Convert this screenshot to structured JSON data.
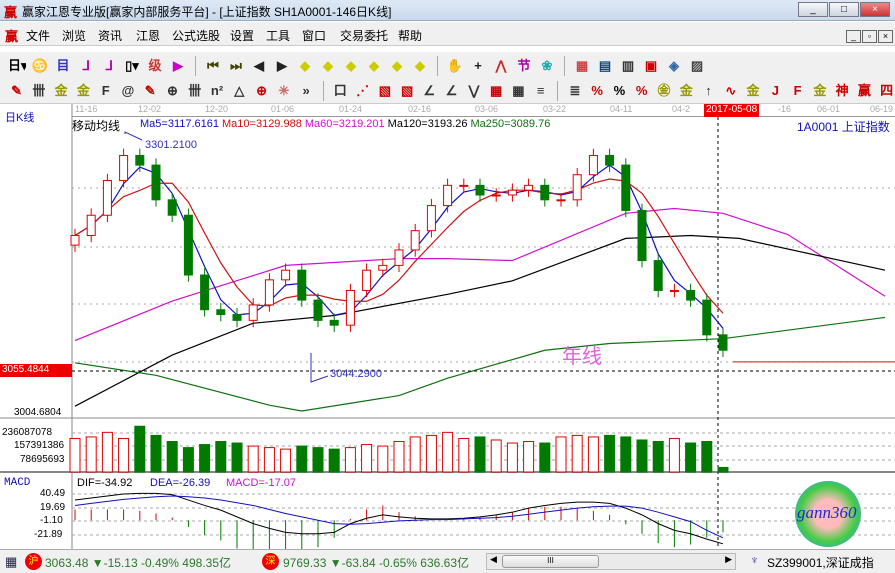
{
  "window": {
    "title": "赢家江恩专业版[赢家内部服务平台] - [上证指数  SH1A0001-146日K线]",
    "logo": "赢"
  },
  "menu": [
    "文件",
    "浏览",
    "资讯",
    "江恩",
    "公式选股",
    "设置",
    "工具",
    "窗口",
    "交易委托",
    "帮助"
  ],
  "toolbar1": [
    {
      "icon": "period-day-dropdown",
      "glyph": "日▾"
    },
    {
      "icon": "kline-chart-icon",
      "glyph": "♋"
    },
    {
      "icon": "list-icon",
      "glyph": "目"
    },
    {
      "icon": "ma3-icon",
      "glyph": "ᒧ"
    },
    {
      "icon": "ma9-icon",
      "glyph": "ᒧ"
    },
    {
      "icon": "candle-dropdown-icon",
      "glyph": "▯▾"
    },
    {
      "icon": "level-icon",
      "glyph": "级"
    },
    {
      "icon": "flag-icon",
      "glyph": "▶"
    },
    {
      "icon": "first-icon",
      "glyph": "⏮"
    },
    {
      "icon": "last-icon",
      "glyph": "⏭"
    },
    {
      "icon": "prev-icon",
      "glyph": "◀"
    },
    {
      "icon": "next-icon",
      "glyph": "▶"
    },
    {
      "icon": "move-left-icon",
      "glyph": "◆"
    },
    {
      "icon": "move-right-icon",
      "glyph": "◆"
    },
    {
      "icon": "expand-icon",
      "glyph": "◆"
    },
    {
      "icon": "shrink-icon",
      "glyph": "◆"
    },
    {
      "icon": "zoom-in-icon",
      "glyph": "◆"
    },
    {
      "icon": "zoom-out-icon",
      "glyph": "◆"
    },
    {
      "icon": "hand-icon",
      "glyph": "✋"
    },
    {
      "icon": "crosshair-icon",
      "glyph": "+"
    },
    {
      "icon": "line-tool-icon",
      "glyph": "⋀"
    },
    {
      "icon": "festival-icon",
      "glyph": "节"
    },
    {
      "icon": "cycle-icon",
      "glyph": "❀"
    },
    {
      "icon": "calendar-icon",
      "glyph": "▦"
    },
    {
      "icon": "calculator-icon",
      "glyph": "▤"
    },
    {
      "icon": "notes-icon",
      "glyph": "▥"
    },
    {
      "icon": "save-icon",
      "glyph": "▣"
    },
    {
      "icon": "network-icon",
      "glyph": "◈"
    },
    {
      "icon": "print-icon",
      "glyph": "▨"
    }
  ],
  "toolbar2": [
    {
      "icon": "pen-icon",
      "glyph": "✎"
    },
    {
      "icon": "grid-icon",
      "glyph": "卌"
    },
    {
      "icon": "gold-icon",
      "glyph": "金"
    },
    {
      "icon": "gold2-icon",
      "glyph": "金"
    },
    {
      "icon": "f-icon",
      "glyph": "F"
    },
    {
      "icon": "spiral-icon",
      "glyph": "@"
    },
    {
      "icon": "pen2-icon",
      "glyph": "✎"
    },
    {
      "icon": "circle-icon",
      "glyph": "⊕"
    },
    {
      "icon": "grid2-icon",
      "glyph": "卌"
    },
    {
      "icon": "n2-icon",
      "glyph": "n²"
    },
    {
      "icon": "triangle-icon",
      "glyph": "△"
    },
    {
      "icon": "target-icon",
      "glyph": "⊕"
    },
    {
      "icon": "star-icon",
      "glyph": "✳"
    },
    {
      "icon": "more-icon",
      "glyph": "»"
    },
    {
      "icon": "box-icon",
      "glyph": "口"
    },
    {
      "icon": "fan-icon",
      "glyph": "⋰"
    },
    {
      "icon": "square-icon",
      "glyph": "▧"
    },
    {
      "icon": "square2-icon",
      "glyph": "▧"
    },
    {
      "icon": "angle-icon",
      "glyph": "∠"
    },
    {
      "icon": "angle2-icon",
      "glyph": "∠"
    },
    {
      "icon": "wave-icon",
      "glyph": "⋁"
    },
    {
      "icon": "grid3-icon",
      "glyph": "▦"
    },
    {
      "icon": "grid4-icon",
      "glyph": "▦"
    },
    {
      "icon": "lines-icon",
      "glyph": "≡"
    },
    {
      "icon": "list2-icon",
      "glyph": "≣"
    },
    {
      "icon": "percent-red-icon",
      "glyph": "%"
    },
    {
      "icon": "percent-icon",
      "glyph": "%"
    },
    {
      "icon": "percent2-icon",
      "glyph": "%"
    },
    {
      "icon": "gold-circle-icon",
      "glyph": "㊎"
    },
    {
      "icon": "gold3-icon",
      "glyph": "金"
    },
    {
      "icon": "arrow-icon",
      "glyph": "↑"
    },
    {
      "icon": "sine-icon",
      "glyph": "∿"
    },
    {
      "icon": "gold4-icon",
      "glyph": "金"
    },
    {
      "icon": "j-angle-icon",
      "glyph": "J"
    },
    {
      "icon": "f-angle-icon",
      "glyph": "F"
    },
    {
      "icon": "gold-angle-icon",
      "glyph": "金"
    },
    {
      "icon": "shen-icon",
      "glyph": "神"
    },
    {
      "icon": "gang-icon",
      "glyph": "赢"
    },
    {
      "icon": "si-icon",
      "glyph": "四"
    }
  ],
  "time_axis": [
    "11-16",
    "12-02",
    "12-20",
    "01-06",
    "01-24",
    "02-16",
    "03-06",
    "03-22",
    "04-11",
    "04-2",
    "-16",
    "06-01",
    "06-19"
  ],
  "cursor_date": "2017-05-08",
  "chart": {
    "period_label": "日K线",
    "ma_title": "移动均线",
    "ma_labels": [
      {
        "text": "Ma5=3117.6161",
        "color": "#1010c0"
      },
      {
        "text": "Ma10=3129.988",
        "color": "#d01010"
      },
      {
        "text": "Ma60=3219.201",
        "color": "#d010d0"
      },
      {
        "text": "Ma120=3193.26",
        "color": "#000000"
      },
      {
        "text": "Ma250=3089.76",
        "color": "#107010"
      }
    ],
    "symbol": "1A0001  上证指数",
    "high_label": "3301.2100",
    "low_label": "3044.2900",
    "price_cursor": "3055.4844",
    "bottom_price": "3004.6804",
    "annotation": "年线",
    "closes": [
      3196,
      3217,
      3253,
      3279,
      3269,
      3233,
      3217,
      3155,
      3119,
      3114,
      3108,
      3124,
      3150,
      3160,
      3129,
      3108,
      3103,
      3139,
      3160,
      3165,
      3181,
      3201,
      3227,
      3248,
      3248,
      3238,
      3238,
      3243,
      3248,
      3233,
      3233,
      3259,
      3279,
      3269,
      3222,
      3170,
      3139,
      3139,
      3129,
      3093,
      3077
    ],
    "ma60": [
      [
        0,
        3087
      ],
      [
        6,
        3128
      ],
      [
        13,
        3165
      ],
      [
        20,
        3172
      ],
      [
        23,
        3172
      ],
      [
        27,
        3170
      ],
      [
        34,
        3219
      ],
      [
        37,
        3224
      ],
      [
        40,
        3219
      ],
      [
        44,
        3197
      ],
      [
        50,
        3133
      ]
    ],
    "ma120": [
      [
        0,
        3019
      ],
      [
        6,
        3072
      ],
      [
        11,
        3105
      ],
      [
        16,
        3113
      ],
      [
        23,
        3135
      ],
      [
        27,
        3149
      ],
      [
        34,
        3193
      ],
      [
        38,
        3196
      ],
      [
        41,
        3193
      ],
      [
        50,
        3160
      ]
    ],
    "ma250": [
      [
        0,
        3064
      ],
      [
        5,
        3051
      ],
      [
        12,
        3020
      ],
      [
        14,
        3014
      ],
      [
        20,
        3030
      ],
      [
        23,
        3048
      ],
      [
        29,
        3077
      ],
      [
        33,
        3084
      ],
      [
        40,
        3089
      ],
      [
        50,
        3111
      ]
    ],
    "volume_labels": [
      "236087078",
      "157391386",
      "78695693"
    ],
    "volumes": [
      220,
      230,
      260,
      220,
      300,
      240,
      200,
      160,
      180,
      200,
      190,
      170,
      160,
      150,
      170,
      160,
      150,
      160,
      180,
      170,
      200,
      230,
      240,
      260,
      220,
      230,
      210,
      190,
      200,
      190,
      230,
      240,
      230,
      240,
      230,
      210,
      200,
      220,
      190,
      200,
      30
    ]
  },
  "macd": {
    "title": "MACD",
    "dif": "DIF=-34.92",
    "dea": "DEA=-26.39",
    "macd": "MACD=-17.07",
    "ticks": [
      "40.49",
      "19.69",
      "-1.10",
      "-21.89"
    ],
    "dif_values": [
      30,
      33,
      36,
      39,
      40,
      40,
      38,
      30,
      22,
      15,
      5,
      -5,
      -12,
      -18,
      -20,
      -20,
      -18,
      -5,
      3,
      8,
      5,
      3,
      2,
      2,
      3,
      5,
      8,
      12,
      18,
      22,
      25,
      27,
      27,
      25,
      18,
      8,
      -5,
      -15,
      -20,
      -28,
      -35
    ],
    "dea_values": [
      22,
      25,
      28,
      31,
      33,
      35,
      36,
      35,
      33,
      30,
      26,
      22,
      16,
      10,
      5,
      0,
      -5,
      -6,
      -5,
      -3,
      -1,
      0,
      1,
      1,
      2,
      3,
      4,
      6,
      9,
      12,
      15,
      18,
      20,
      21,
      21,
      18,
      12,
      5,
      -2,
      -15,
      -26
    ]
  },
  "status": {
    "sh_badge": "沪",
    "sh": "3063.48 ▼-15.13 -0.49% 498.35亿",
    "sz_badge": "深",
    "sz": "9769.33 ▼-63.84 -0.65% 636.63亿",
    "right": "SZ399001,深证成指"
  },
  "logo_text": "gann360",
  "colors": {
    "up": "#e00000",
    "down": "#007a00",
    "ma5": "#1010c0",
    "ma10": "#d01010",
    "ma60": "#d010d0",
    "ma120": "#000000",
    "ma250": "#107010"
  }
}
